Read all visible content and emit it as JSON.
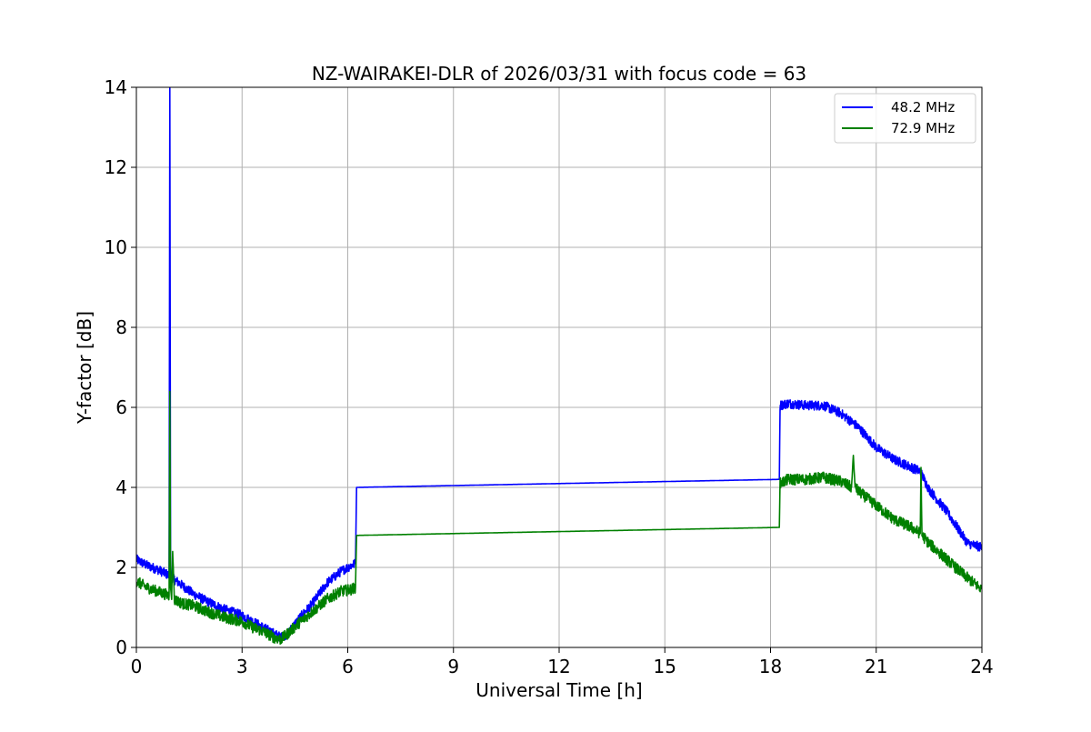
{
  "chart_data": {
    "type": "line",
    "title": "NZ-WAIRAKEI-DLR of 2026/03/31 with focus code = 63",
    "xlabel": "Universal Time [h]",
    "ylabel": "Y-factor [dB]",
    "xlim": [
      0,
      24
    ],
    "ylim": [
      0,
      14
    ],
    "xticks": [
      0,
      3,
      6,
      9,
      12,
      15,
      18,
      21,
      24
    ],
    "yticks": [
      0,
      2,
      4,
      6,
      8,
      10,
      12,
      14
    ],
    "grid": true,
    "legend_position": "top-right",
    "series": [
      {
        "name": "48.2 MHz",
        "color": "#0000ff",
        "noise_amplitude": 0.12,
        "x": [
          0,
          0.3,
          0.6,
          0.93,
          0.95,
          0.97,
          1.0,
          1.3,
          1.6,
          2.0,
          2.5,
          3.0,
          3.3,
          3.6,
          3.9,
          4.1,
          4.3,
          4.6,
          5.0,
          5.4,
          5.8,
          6.1,
          6.22,
          6.25,
          18.25,
          18.27,
          18.5,
          19.0,
          19.5,
          20.0,
          20.5,
          21.0,
          21.5,
          22.0,
          22.25,
          22.5,
          23.0,
          23.3,
          23.6,
          24.0
        ],
        "y": [
          2.2,
          2.05,
          1.95,
          1.8,
          14.0,
          2.0,
          1.75,
          1.55,
          1.35,
          1.15,
          0.95,
          0.8,
          0.65,
          0.5,
          0.35,
          0.25,
          0.35,
          0.7,
          1.1,
          1.6,
          1.9,
          2.05,
          2.1,
          4.0,
          4.2,
          6.05,
          6.1,
          6.05,
          6.05,
          5.85,
          5.5,
          5.0,
          4.7,
          4.5,
          4.4,
          3.95,
          3.4,
          3.0,
          2.6,
          2.5
        ]
      },
      {
        "name": "72.9 MHz",
        "color": "#008000",
        "noise_amplitude": 0.14,
        "x": [
          0,
          0.3,
          0.6,
          0.93,
          0.95,
          0.97,
          1.0,
          1.03,
          1.08,
          1.3,
          1.6,
          2.0,
          2.5,
          3.0,
          3.3,
          3.6,
          3.9,
          4.1,
          4.3,
          4.6,
          5.0,
          5.4,
          5.8,
          6.1,
          6.22,
          6.25,
          18.25,
          18.27,
          18.5,
          19.0,
          19.5,
          20.0,
          20.3,
          20.35,
          20.4,
          20.5,
          21.0,
          21.5,
          22.0,
          22.25,
          22.27,
          22.3,
          22.5,
          23.0,
          23.5,
          24.0
        ],
        "y": [
          1.65,
          1.5,
          1.4,
          1.3,
          6.4,
          1.5,
          1.2,
          2.4,
          1.2,
          1.1,
          1.05,
          0.9,
          0.75,
          0.65,
          0.5,
          0.4,
          0.25,
          0.2,
          0.35,
          0.6,
          0.9,
          1.2,
          1.4,
          1.45,
          1.5,
          2.8,
          3.0,
          4.1,
          4.2,
          4.2,
          4.25,
          4.15,
          4.0,
          4.8,
          4.0,
          3.9,
          3.55,
          3.2,
          3.0,
          2.85,
          4.5,
          2.8,
          2.6,
          2.2,
          1.8,
          1.45
        ]
      }
    ]
  }
}
